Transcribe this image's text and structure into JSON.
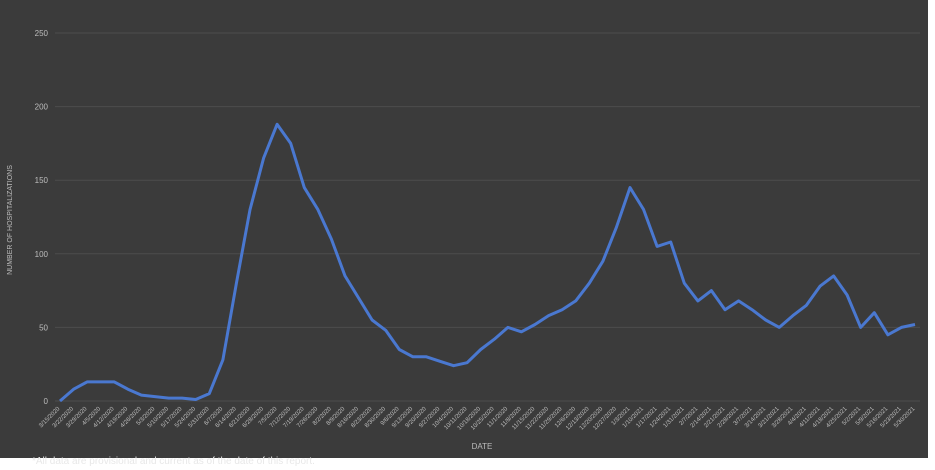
{
  "chart_data": {
    "type": "line",
    "y_label": "NUMBER OF HOSPITALIZATIONS",
    "x_label": "DATE",
    "footnote": "*All data are provisional and current as of the date of this report.",
    "categories": [
      "3/15/2020",
      "3/22/2020",
      "3/29/2020",
      "4/5/2020",
      "4/12/2020",
      "4/19/2020",
      "4/26/2020",
      "5/3/2020",
      "5/10/2020",
      "5/17/2020",
      "5/24/2020",
      "5/31/2020",
      "6/7/2020",
      "6/14/2020",
      "6/21/2020",
      "6/28/2020",
      "7/5/2020",
      "7/12/2020",
      "7/19/2020",
      "7/26/2020",
      "8/2/2020",
      "8/9/2020",
      "8/16/2020",
      "8/23/2020",
      "8/30/2020",
      "9/6/2020",
      "9/13/2020",
      "9/20/2020",
      "9/27/2020",
      "10/4/2020",
      "10/11/2020",
      "10/18/2020",
      "10/25/2020",
      "11/1/2020",
      "11/8/2020",
      "11/15/2020",
      "11/22/2020",
      "11/29/2020",
      "12/6/2020",
      "12/13/2020",
      "12/20/2020",
      "12/27/2020",
      "1/3/2021",
      "1/10/2021",
      "1/17/2021",
      "1/24/2021",
      "1/31/2021",
      "2/7/2021",
      "2/14/2021",
      "2/21/2021",
      "2/28/2021",
      "3/7/2021",
      "3/14/2021",
      "3/21/2021",
      "3/28/2021",
      "4/4/2021",
      "4/11/2021",
      "4/18/2021",
      "4/25/2021",
      "5/2/2021",
      "5/9/2021",
      "5/16/2021",
      "5/23/2021",
      "5/30/2021"
    ],
    "values": [
      0,
      8,
      13,
      13,
      13,
      8,
      4,
      3,
      2,
      2,
      1,
      5,
      28,
      80,
      130,
      165,
      188,
      175,
      145,
      130,
      110,
      85,
      70,
      55,
      48,
      35,
      30,
      30,
      27,
      24,
      26,
      35,
      42,
      50,
      47,
      52,
      58,
      62,
      68,
      80,
      95,
      118,
      145,
      130,
      105,
      108,
      80,
      68,
      75,
      62,
      68,
      62,
      55,
      50,
      58,
      65,
      78,
      85,
      72,
      50,
      60,
      45,
      50,
      52
    ],
    "color": "#4a78d0",
    "ylim": [
      0,
      250
    ],
    "yticks": [
      0,
      50,
      100,
      150,
      200,
      250
    ],
    "grid": true
  }
}
